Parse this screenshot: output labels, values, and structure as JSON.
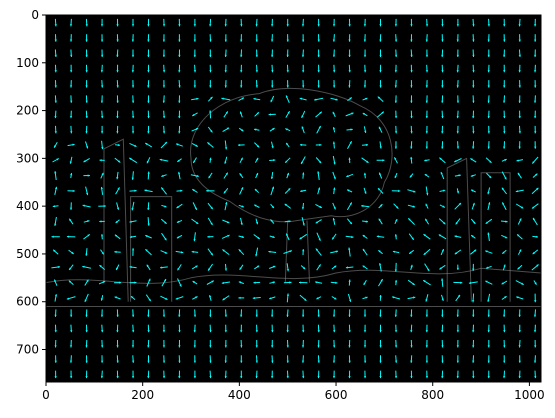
{
  "chart_data": {
    "type": "quiver",
    "title": "",
    "xlabel": "",
    "ylabel": "",
    "image_width": 1024,
    "image_height": 768,
    "xlim": [
      0,
      1024
    ],
    "ylim": [
      768,
      0
    ],
    "y_inverted": true,
    "xticks": [
      0,
      200,
      400,
      600,
      800,
      1000
    ],
    "yticks": [
      0,
      100,
      200,
      300,
      400,
      500,
      600,
      700
    ],
    "xtick_labels": [
      "0",
      "200",
      "400",
      "600",
      "800",
      "1000"
    ],
    "ytick_labels": [
      "0",
      "100",
      "200",
      "300",
      "400",
      "500",
      "600",
      "700"
    ],
    "arrow_grid_spacing": 32,
    "background_description": "grayscale gradient-magnitude image of a tree and city skyline on black",
    "background_color": "#000000",
    "arrow_color": "#00ffff",
    "default_direction": "down",
    "structure_regions": [
      {
        "name": "tree-canopy",
        "x": [
          300,
          720
        ],
        "y": [
          150,
          440
        ]
      },
      {
        "name": "left-towers",
        "x": [
          0,
          300
        ],
        "y": [
          260,
          600
        ]
      },
      {
        "name": "right-towers",
        "x": [
          700,
          1024
        ],
        "y": [
          300,
          600
        ]
      },
      {
        "name": "ground-band",
        "x": [
          0,
          1024
        ],
        "y": [
          460,
          610
        ]
      }
    ]
  }
}
